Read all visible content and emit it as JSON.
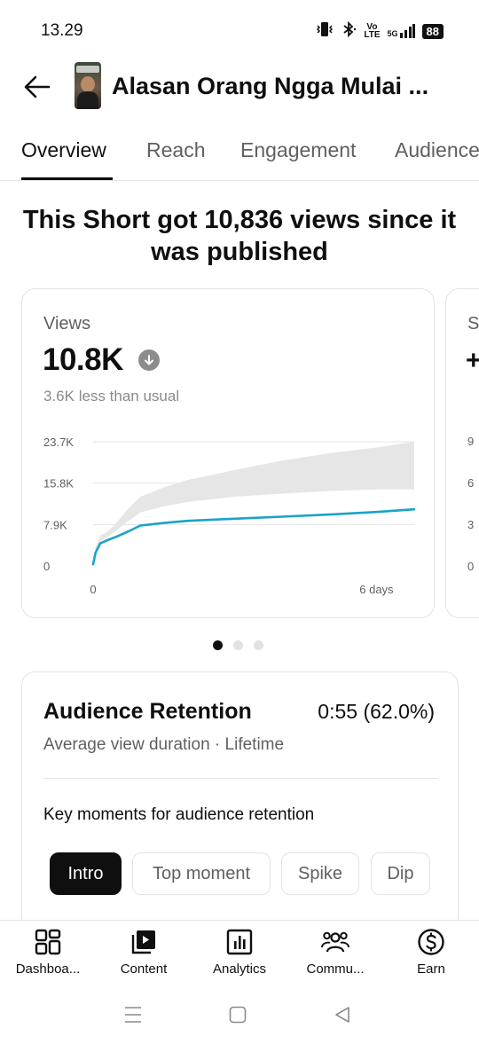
{
  "status": {
    "time": "13.29",
    "network_lines": [
      "Vo",
      "LTE"
    ],
    "network_5g": "5G",
    "battery": "88"
  },
  "header": {
    "title": "Alasan Orang Ngga Mulai ..."
  },
  "tabs": [
    {
      "label": "Overview",
      "active": true
    },
    {
      "label": "Reach",
      "active": false
    },
    {
      "label": "Engagement",
      "active": false
    },
    {
      "label": "Audience",
      "active": false
    }
  ],
  "headline": "This Short got 10,836 views since it was published",
  "views_card": {
    "label": "Views",
    "value": "10.8K",
    "comparison": "3.6K less than usual"
  },
  "peek_card": {
    "label": "S",
    "value_prefix": "+",
    "ticks": [
      "9",
      "6",
      "3",
      "0"
    ]
  },
  "chart_data": {
    "type": "line",
    "title": "",
    "xlabel": "",
    "ylabel": "",
    "x_ticks": [
      "0",
      "6 days"
    ],
    "y_ticks": [
      "23.7K",
      "15.8K",
      "7.9K",
      "0"
    ],
    "ylim": [
      0,
      23700
    ],
    "xlim": [
      0,
      6.8
    ],
    "grid": true,
    "colors": {
      "line": "#1aa3c8",
      "band": "#e6e6e6",
      "grid": "#e5e5e5"
    },
    "series": [
      {
        "x": [
          0,
          0.05,
          0.15,
          0.3,
          0.5,
          0.75,
          1.0,
          1.5,
          2.0,
          3.0,
          4.0,
          5.0,
          6.0,
          6.8
        ],
        "y": [
          300,
          2500,
          4300,
          4900,
          5600,
          6600,
          7700,
          8200,
          8600,
          9000,
          9400,
          9800,
          10300,
          10800
        ]
      }
    ],
    "typical_range": {
      "x": [
        0,
        0.05,
        0.15,
        0.3,
        0.5,
        0.75,
        1.0,
        1.5,
        2.0,
        3.0,
        4.0,
        5.0,
        6.0,
        6.8
      ],
      "low": [
        300,
        2800,
        4700,
        5500,
        6800,
        8600,
        10200,
        11400,
        12200,
        13200,
        13800,
        14300,
        14600,
        14600
      ],
      "high": [
        300,
        3500,
        5800,
        6500,
        8300,
        11000,
        13200,
        15000,
        16400,
        18300,
        20100,
        21500,
        22600,
        23700
      ]
    }
  },
  "carousel": {
    "pages": 3,
    "active": 0
  },
  "retention": {
    "title": "Audience Retention",
    "value": "0:55 (62.0%)",
    "subtitle": "Average view duration · Lifetime",
    "key_moments_label": "Key moments for audience retention",
    "chips": [
      {
        "label": "Intro",
        "active": true
      },
      {
        "label": "Top moment",
        "active": false
      },
      {
        "label": "Spike",
        "active": false
      },
      {
        "label": "Dip",
        "active": false
      }
    ]
  },
  "bottom_nav": [
    {
      "label": "Dashboa...",
      "icon": "dashboard-icon"
    },
    {
      "label": "Content",
      "icon": "content-icon"
    },
    {
      "label": "Analytics",
      "icon": "analytics-icon"
    },
    {
      "label": "Commu...",
      "icon": "community-icon"
    },
    {
      "label": "Earn",
      "icon": "earn-icon"
    }
  ]
}
